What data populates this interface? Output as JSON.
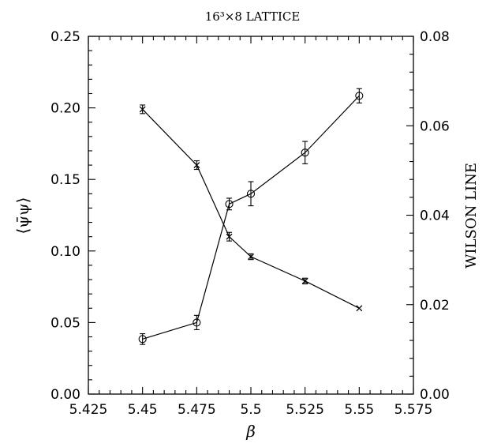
{
  "chart_data": {
    "type": "scatter",
    "title": "16³×8 LATTICE",
    "xlabel": "β",
    "ylabel_left": "⟨ψ̄ψ⟩",
    "ylabel_right": "WILSON LINE",
    "xlim": [
      5.425,
      5.575
    ],
    "ylim_left": [
      0.0,
      0.25
    ],
    "ylim_right": [
      0.0,
      0.08
    ],
    "x_ticks": [
      5.425,
      5.45,
      5.475,
      5.5,
      5.525,
      5.55,
      5.575
    ],
    "x_tick_labels": [
      "5.425",
      "5.45",
      "5.475",
      "5.5",
      "5.525",
      "5.55",
      "5.575"
    ],
    "y_left_ticks": [
      0.0,
      0.05,
      0.1,
      0.15,
      0.2,
      0.25
    ],
    "y_left_tick_labels": [
      "0.00",
      "0.05",
      "0.10",
      "0.15",
      "0.20",
      "0.25"
    ],
    "y_right_ticks": [
      0.0,
      0.02,
      0.04,
      0.06,
      0.08
    ],
    "y_right_tick_labels": [
      "0.00",
      "0.02",
      "0.04",
      "0.06",
      "0.08"
    ],
    "grid": false,
    "series": [
      {
        "axis": "left",
        "marker": "x",
        "x": [
          5.45,
          5.475,
          5.49,
          5.5,
          5.525,
          5.55
        ],
        "y": [
          0.199,
          0.16,
          0.11,
          0.096,
          0.079,
          0.06
        ],
        "err": [
          0.003,
          0.003,
          0.003,
          0.002,
          0.002,
          0.0
        ]
      },
      {
        "axis": "right",
        "marker": "circle",
        "x": [
          5.45,
          5.475,
          5.49,
          5.5,
          5.525,
          5.55
        ],
        "y": [
          0.0123,
          0.016,
          0.0425,
          0.0448,
          0.054,
          0.0667
        ],
        "err": [
          0.0012,
          0.0016,
          0.0013,
          0.0027,
          0.0025,
          0.0016
        ]
      }
    ]
  }
}
